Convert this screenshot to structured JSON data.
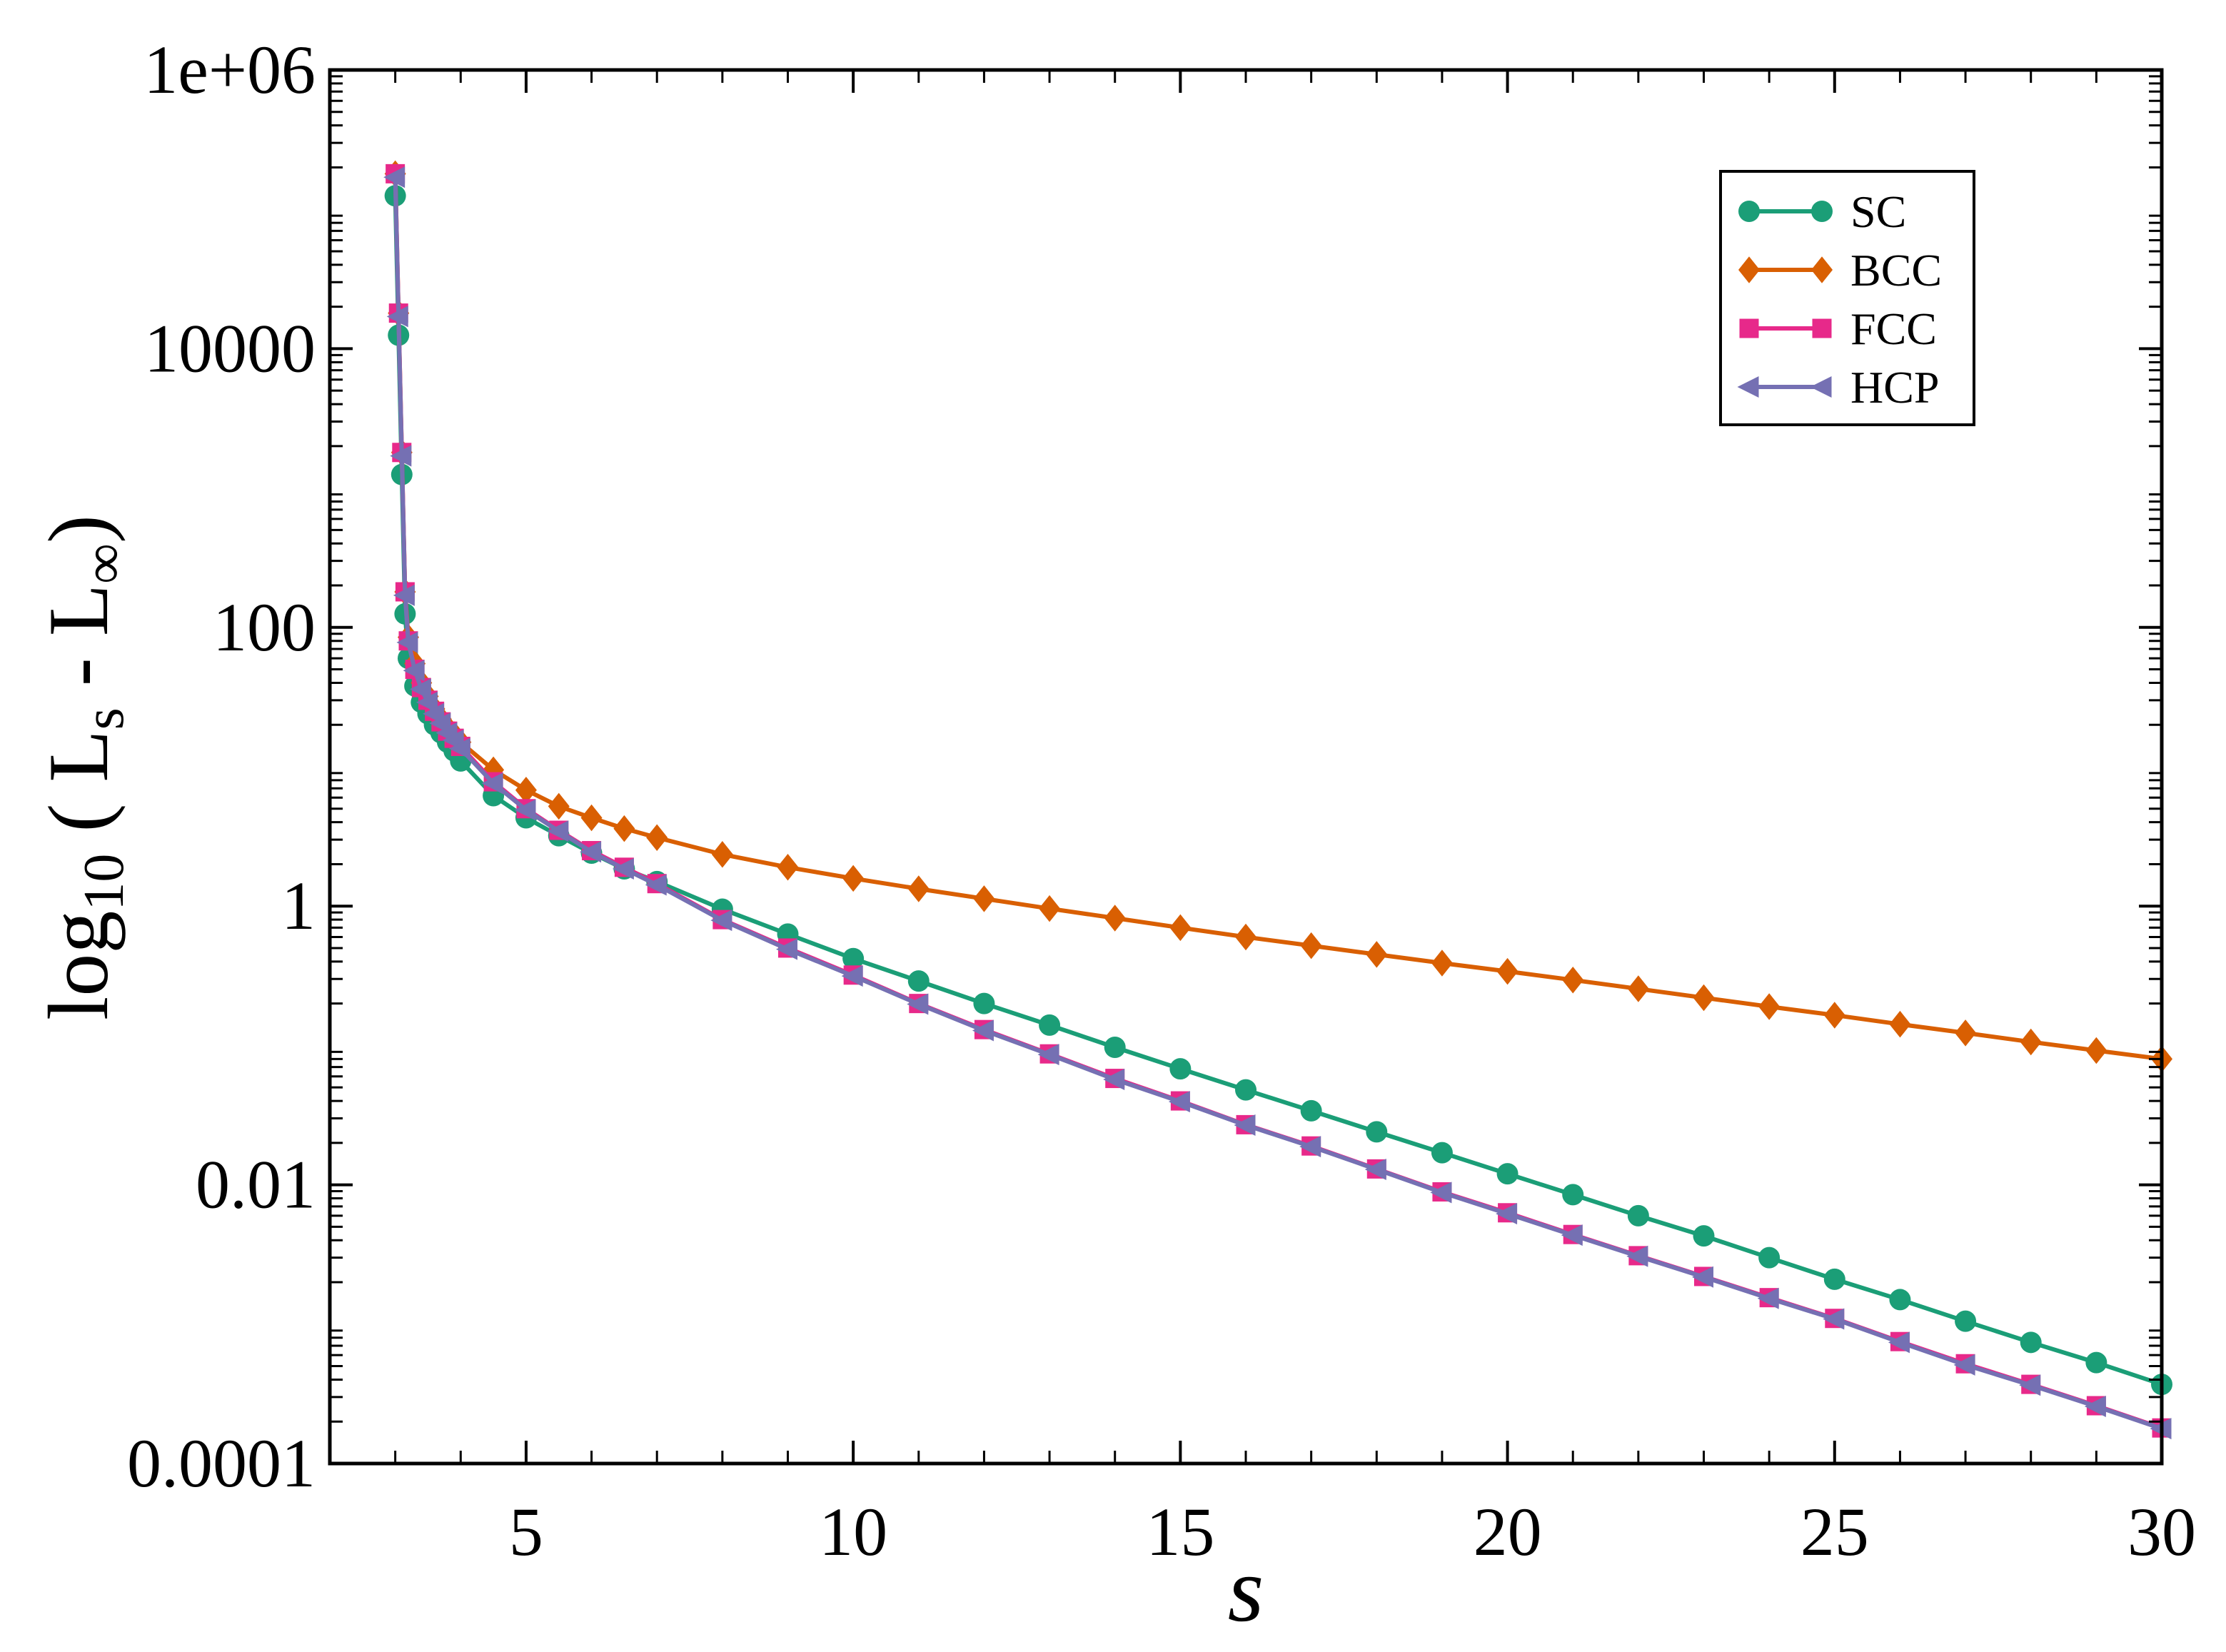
{
  "chart_data": {
    "type": "line",
    "xlabel": "s",
    "ylabel": {
      "parts": [
        {
          "text": "log",
          "role": "base"
        },
        {
          "text": "10",
          "role": "sub"
        },
        {
          "text": " ( L",
          "role": "base"
        },
        {
          "text": "s",
          "role": "sub"
        },
        {
          "text": " - L",
          "role": "base"
        },
        {
          "text": "∞",
          "role": "sub"
        },
        {
          "text": ")",
          "role": "base"
        }
      ]
    },
    "xlim": [
      2,
      30
    ],
    "ylim": [
      0.0001,
      1000000
    ],
    "yscale": "log",
    "x_ticks": [
      {
        "value": 5,
        "label": "5"
      },
      {
        "value": 10,
        "label": "10"
      },
      {
        "value": 15,
        "label": "15"
      },
      {
        "value": 20,
        "label": "20"
      },
      {
        "value": 25,
        "label": "25"
      },
      {
        "value": 30,
        "label": "30"
      }
    ],
    "x_minor_ticks": [
      3,
      4,
      6,
      7,
      8,
      9,
      11,
      12,
      13,
      14,
      16,
      17,
      18,
      19,
      21,
      22,
      23,
      24,
      26,
      27,
      28,
      29
    ],
    "y_ticks": [
      {
        "value": 0.0001,
        "label": "0.0001"
      },
      {
        "value": 0.01,
        "label": "0.01"
      },
      {
        "value": 1,
        "label": "1"
      },
      {
        "value": 100,
        "label": "100"
      },
      {
        "value": 10000,
        "label": "10000"
      },
      {
        "value": 1000000,
        "label": "1e+06"
      }
    ],
    "grid": false,
    "legend_position": "top-right",
    "series": [
      {
        "name": "SC",
        "color": "#1b9e77",
        "marker": "circle",
        "x": [
          3.0,
          3.05,
          3.1,
          3.15,
          3.2,
          3.3,
          3.4,
          3.5,
          3.6,
          3.7,
          3.8,
          3.9,
          4.0,
          4.5,
          5.0,
          5.5,
          6.0,
          6.5,
          7.0,
          8,
          9,
          10,
          11,
          12,
          13,
          14,
          15,
          16,
          17,
          18,
          19,
          20,
          21,
          22,
          23,
          24,
          25,
          26,
          27,
          28,
          29,
          30
        ],
        "y": [
          125000,
          12500,
          1250,
          125,
          60,
          38,
          29,
          24,
          20,
          17.5,
          15,
          13,
          11,
          6.2,
          4.3,
          3.2,
          2.4,
          1.85,
          1.5,
          0.95,
          0.63,
          0.42,
          0.29,
          0.2,
          0.14,
          0.097,
          0.068,
          0.048,
          0.034,
          0.024,
          0.017,
          0.012,
          0.0085,
          0.006,
          0.0043,
          0.003,
          0.0021,
          0.0015,
          0.00105,
          0.00074,
          0.00053,
          0.00037
        ]
      },
      {
        "name": "BCC",
        "color": "#d95f02",
        "marker": "diamond",
        "x": [
          3.0,
          3.05,
          3.1,
          3.15,
          3.2,
          3.3,
          3.4,
          3.5,
          3.6,
          3.7,
          3.8,
          3.9,
          4.0,
          4.5,
          5.0,
          5.5,
          6.0,
          6.5,
          7.0,
          8,
          9,
          10,
          11,
          12,
          13,
          14,
          15,
          16,
          17,
          18,
          19,
          20,
          21,
          22,
          23,
          24,
          25,
          26,
          27,
          28,
          29,
          30
        ],
        "y": [
          180000,
          18000,
          1800,
          180,
          85,
          55,
          40,
          32,
          26,
          22,
          19,
          17,
          15,
          9.5,
          6.8,
          5.2,
          4.3,
          3.6,
          3.1,
          2.35,
          1.9,
          1.58,
          1.33,
          1.13,
          0.96,
          0.82,
          0.7,
          0.6,
          0.52,
          0.45,
          0.39,
          0.34,
          0.295,
          0.255,
          0.22,
          0.19,
          0.165,
          0.142,
          0.123,
          0.106,
          0.092,
          0.08
        ]
      },
      {
        "name": "FCC",
        "color": "#e7298a",
        "marker": "square",
        "x": [
          3.0,
          3.05,
          3.1,
          3.15,
          3.2,
          3.3,
          3.4,
          3.5,
          3.6,
          3.7,
          3.8,
          3.9,
          4.0,
          4.5,
          5.0,
          5.5,
          6.0,
          6.5,
          7.0,
          8,
          9,
          10,
          11,
          12,
          13,
          14,
          15,
          16,
          17,
          18,
          19,
          20,
          21,
          22,
          23,
          24,
          25,
          26,
          27,
          28,
          29,
          30
        ],
        "y": [
          180000,
          18000,
          1800,
          180,
          80,
          50,
          37,
          30,
          25,
          21,
          18,
          16,
          14,
          7.8,
          5.0,
          3.5,
          2.5,
          1.9,
          1.45,
          0.8,
          0.5,
          0.32,
          0.2,
          0.13,
          0.087,
          0.058,
          0.04,
          0.027,
          0.019,
          0.013,
          0.0089,
          0.0063,
          0.0044,
          0.0031,
          0.0022,
          0.00155,
          0.0011,
          0.00075,
          0.00052,
          0.00037,
          0.00026,
          0.00018
        ]
      },
      {
        "name": "HCP",
        "color": "#7570b3",
        "marker": "triangle-left",
        "x": [
          3.0,
          3.05,
          3.1,
          3.15,
          3.2,
          3.3,
          3.4,
          3.5,
          3.6,
          3.7,
          3.8,
          3.9,
          4.0,
          4.5,
          5.0,
          5.5,
          6.0,
          6.5,
          7.0,
          8,
          9,
          10,
          11,
          12,
          13,
          14,
          15,
          16,
          17,
          18,
          19,
          20,
          21,
          22,
          23,
          24,
          25,
          26,
          27,
          28,
          29,
          30
        ],
        "y": [
          170000,
          17000,
          1700,
          170,
          78,
          49,
          36,
          29,
          24,
          20.5,
          17.5,
          15.5,
          13.5,
          7.6,
          4.9,
          3.45,
          2.45,
          1.85,
          1.42,
          0.79,
          0.49,
          0.315,
          0.198,
          0.128,
          0.086,
          0.057,
          0.0395,
          0.0268,
          0.0188,
          0.0129,
          0.0088,
          0.0062,
          0.00435,
          0.00307,
          0.00218,
          0.00153,
          0.00109,
          0.00074,
          0.00051,
          0.000365,
          0.000257,
          0.000178
        ]
      }
    ]
  }
}
